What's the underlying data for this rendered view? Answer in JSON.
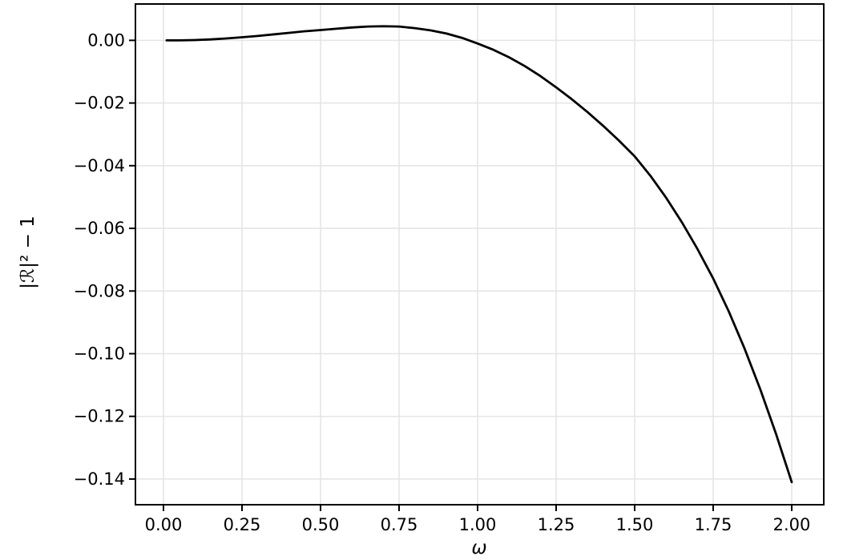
{
  "figure": {
    "background": "#ffffff",
    "frame_color": "#000000",
    "grid_color": "#e4e4e4",
    "tick_color": "#000000",
    "text_color": "#000000"
  },
  "chart_data": {
    "type": "line",
    "title": "",
    "xlabel": "ω",
    "ylabel": "|ℛ|² − 1",
    "grid": true,
    "legend": "none",
    "xlim": [
      -0.0893,
      2.102
    ],
    "ylim": [
      -0.1482,
      0.0116
    ],
    "xticks": {
      "values": [
        0.0,
        0.25,
        0.5,
        0.75,
        1.0,
        1.25,
        1.5,
        1.75,
        2.0
      ],
      "labels": [
        "0.00",
        "0.25",
        "0.50",
        "0.75",
        "1.00",
        "1.25",
        "1.50",
        "1.75",
        "2.00"
      ]
    },
    "yticks": {
      "values": [
        0.0,
        -0.02,
        -0.04,
        -0.06,
        -0.08,
        -0.1,
        -0.12,
        -0.14
      ],
      "labels": [
        "0.00",
        "−0.02",
        "−0.04",
        "−0.06",
        "−0.08",
        "−0.10",
        "−0.12",
        "−0.14"
      ]
    },
    "series": [
      {
        "name": "|ℛ|² − 1",
        "color": "#000000",
        "line_width": 2.8,
        "x": [
          0.01,
          0.05,
          0.1,
          0.15,
          0.2,
          0.25,
          0.3,
          0.35,
          0.4,
          0.45,
          0.5,
          0.55,
          0.6,
          0.65,
          0.7,
          0.75,
          0.8,
          0.85,
          0.9,
          0.95,
          1.0,
          1.05,
          1.1,
          1.15,
          1.2,
          1.25,
          1.3,
          1.35,
          1.4,
          1.45,
          1.5,
          1.55,
          1.6,
          1.65,
          1.7,
          1.75,
          1.8,
          1.85,
          1.9,
          1.95,
          2.0
        ],
        "y": [
          0.0,
          0.0,
          0.0001,
          0.0003,
          0.0006,
          0.001,
          0.0014,
          0.0019,
          0.0024,
          0.0029,
          0.0033,
          0.0037,
          0.0041,
          0.0044,
          0.0045,
          0.0044,
          0.0039,
          0.0032,
          0.0022,
          0.0008,
          -0.001,
          -0.003,
          -0.0054,
          -0.0082,
          -0.0114,
          -0.015,
          -0.0188,
          -0.0229,
          -0.0273,
          -0.032,
          -0.037,
          -0.0432,
          -0.0502,
          -0.058,
          -0.0666,
          -0.076,
          -0.0866,
          -0.0984,
          -0.1114,
          -0.1256,
          -0.141
        ]
      }
    ]
  }
}
